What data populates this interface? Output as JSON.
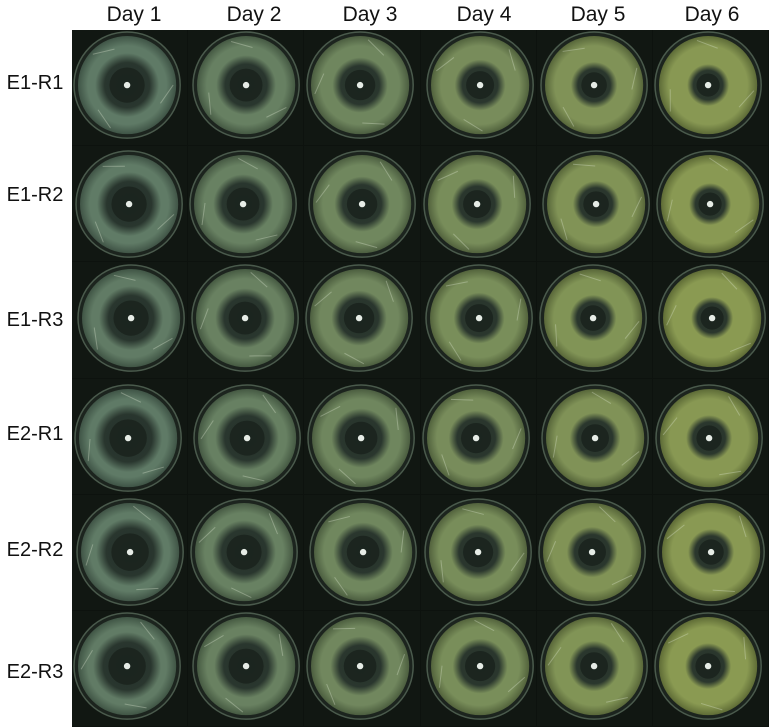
{
  "columns": [
    "Day 1",
    "Day 2",
    "Day 3",
    "Day 4",
    "Day 5",
    "Day 6"
  ],
  "rows": [
    "E1-R1",
    "E1-R2",
    "E1-R3",
    "E2-R1",
    "E2-R2",
    "E2-R3"
  ],
  "colors": {
    "background": "#0d120e",
    "agar_early": "#5f7a66",
    "agar_late": "#8a9a52",
    "inhibition_zone": "#26322b",
    "disc": "#e6ece6"
  }
}
